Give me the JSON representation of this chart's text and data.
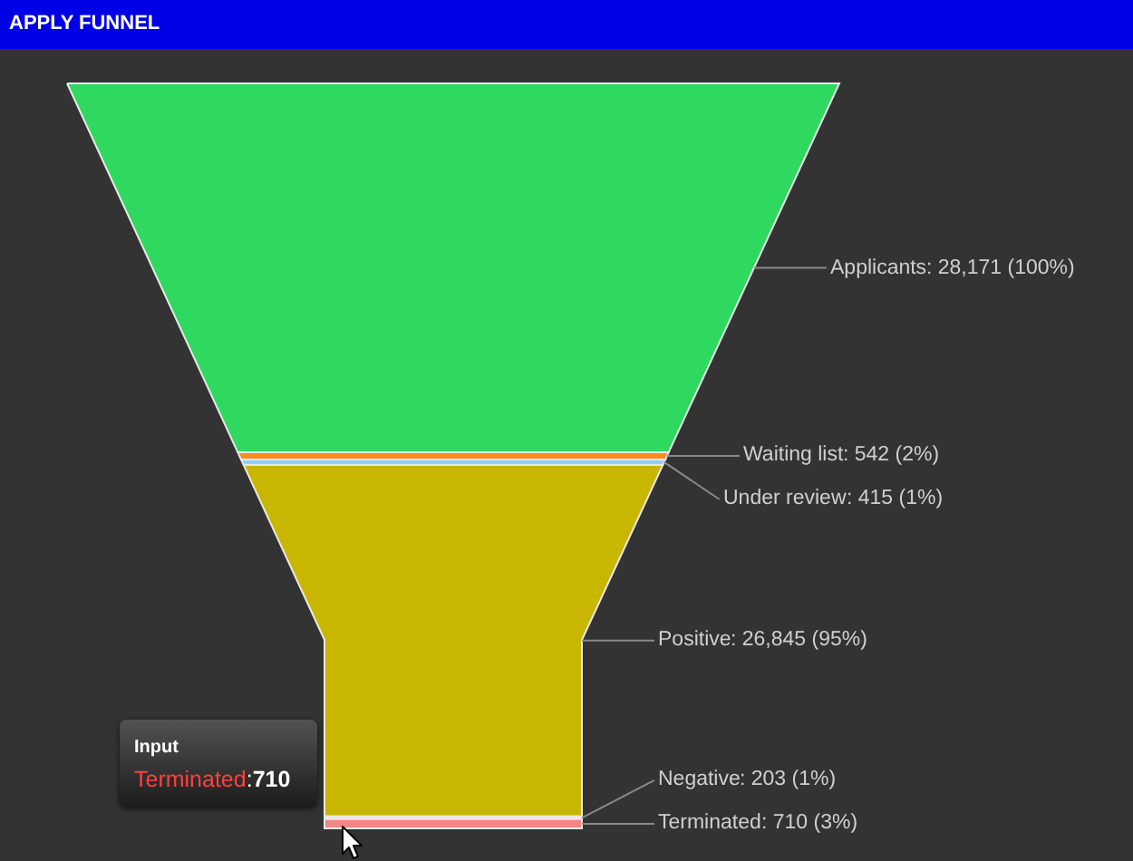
{
  "chart_data": {
    "type": "other",
    "title": "APPLY FUNNEL",
    "categories": [
      "Applicants",
      "Waiting list",
      "Under review",
      "Positive",
      "Negative",
      "Terminated"
    ],
    "values": [
      28171,
      542,
      415,
      26845,
      203,
      710
    ],
    "value_labels": [
      ": 28,171 (100%)",
      ": 542 (2%)",
      ": 415 (1%)",
      ": 26,845 (95%)",
      ": 203 (1%)",
      ": 710 (3%)"
    ],
    "colors": [
      "#2fd95f",
      "#ff8a1e",
      "#8fd0f5",
      "#c8b600",
      "#f6efd0",
      "#f38585"
    ],
    "annotations": [
      "Input",
      "Terminated:710"
    ]
  }
}
